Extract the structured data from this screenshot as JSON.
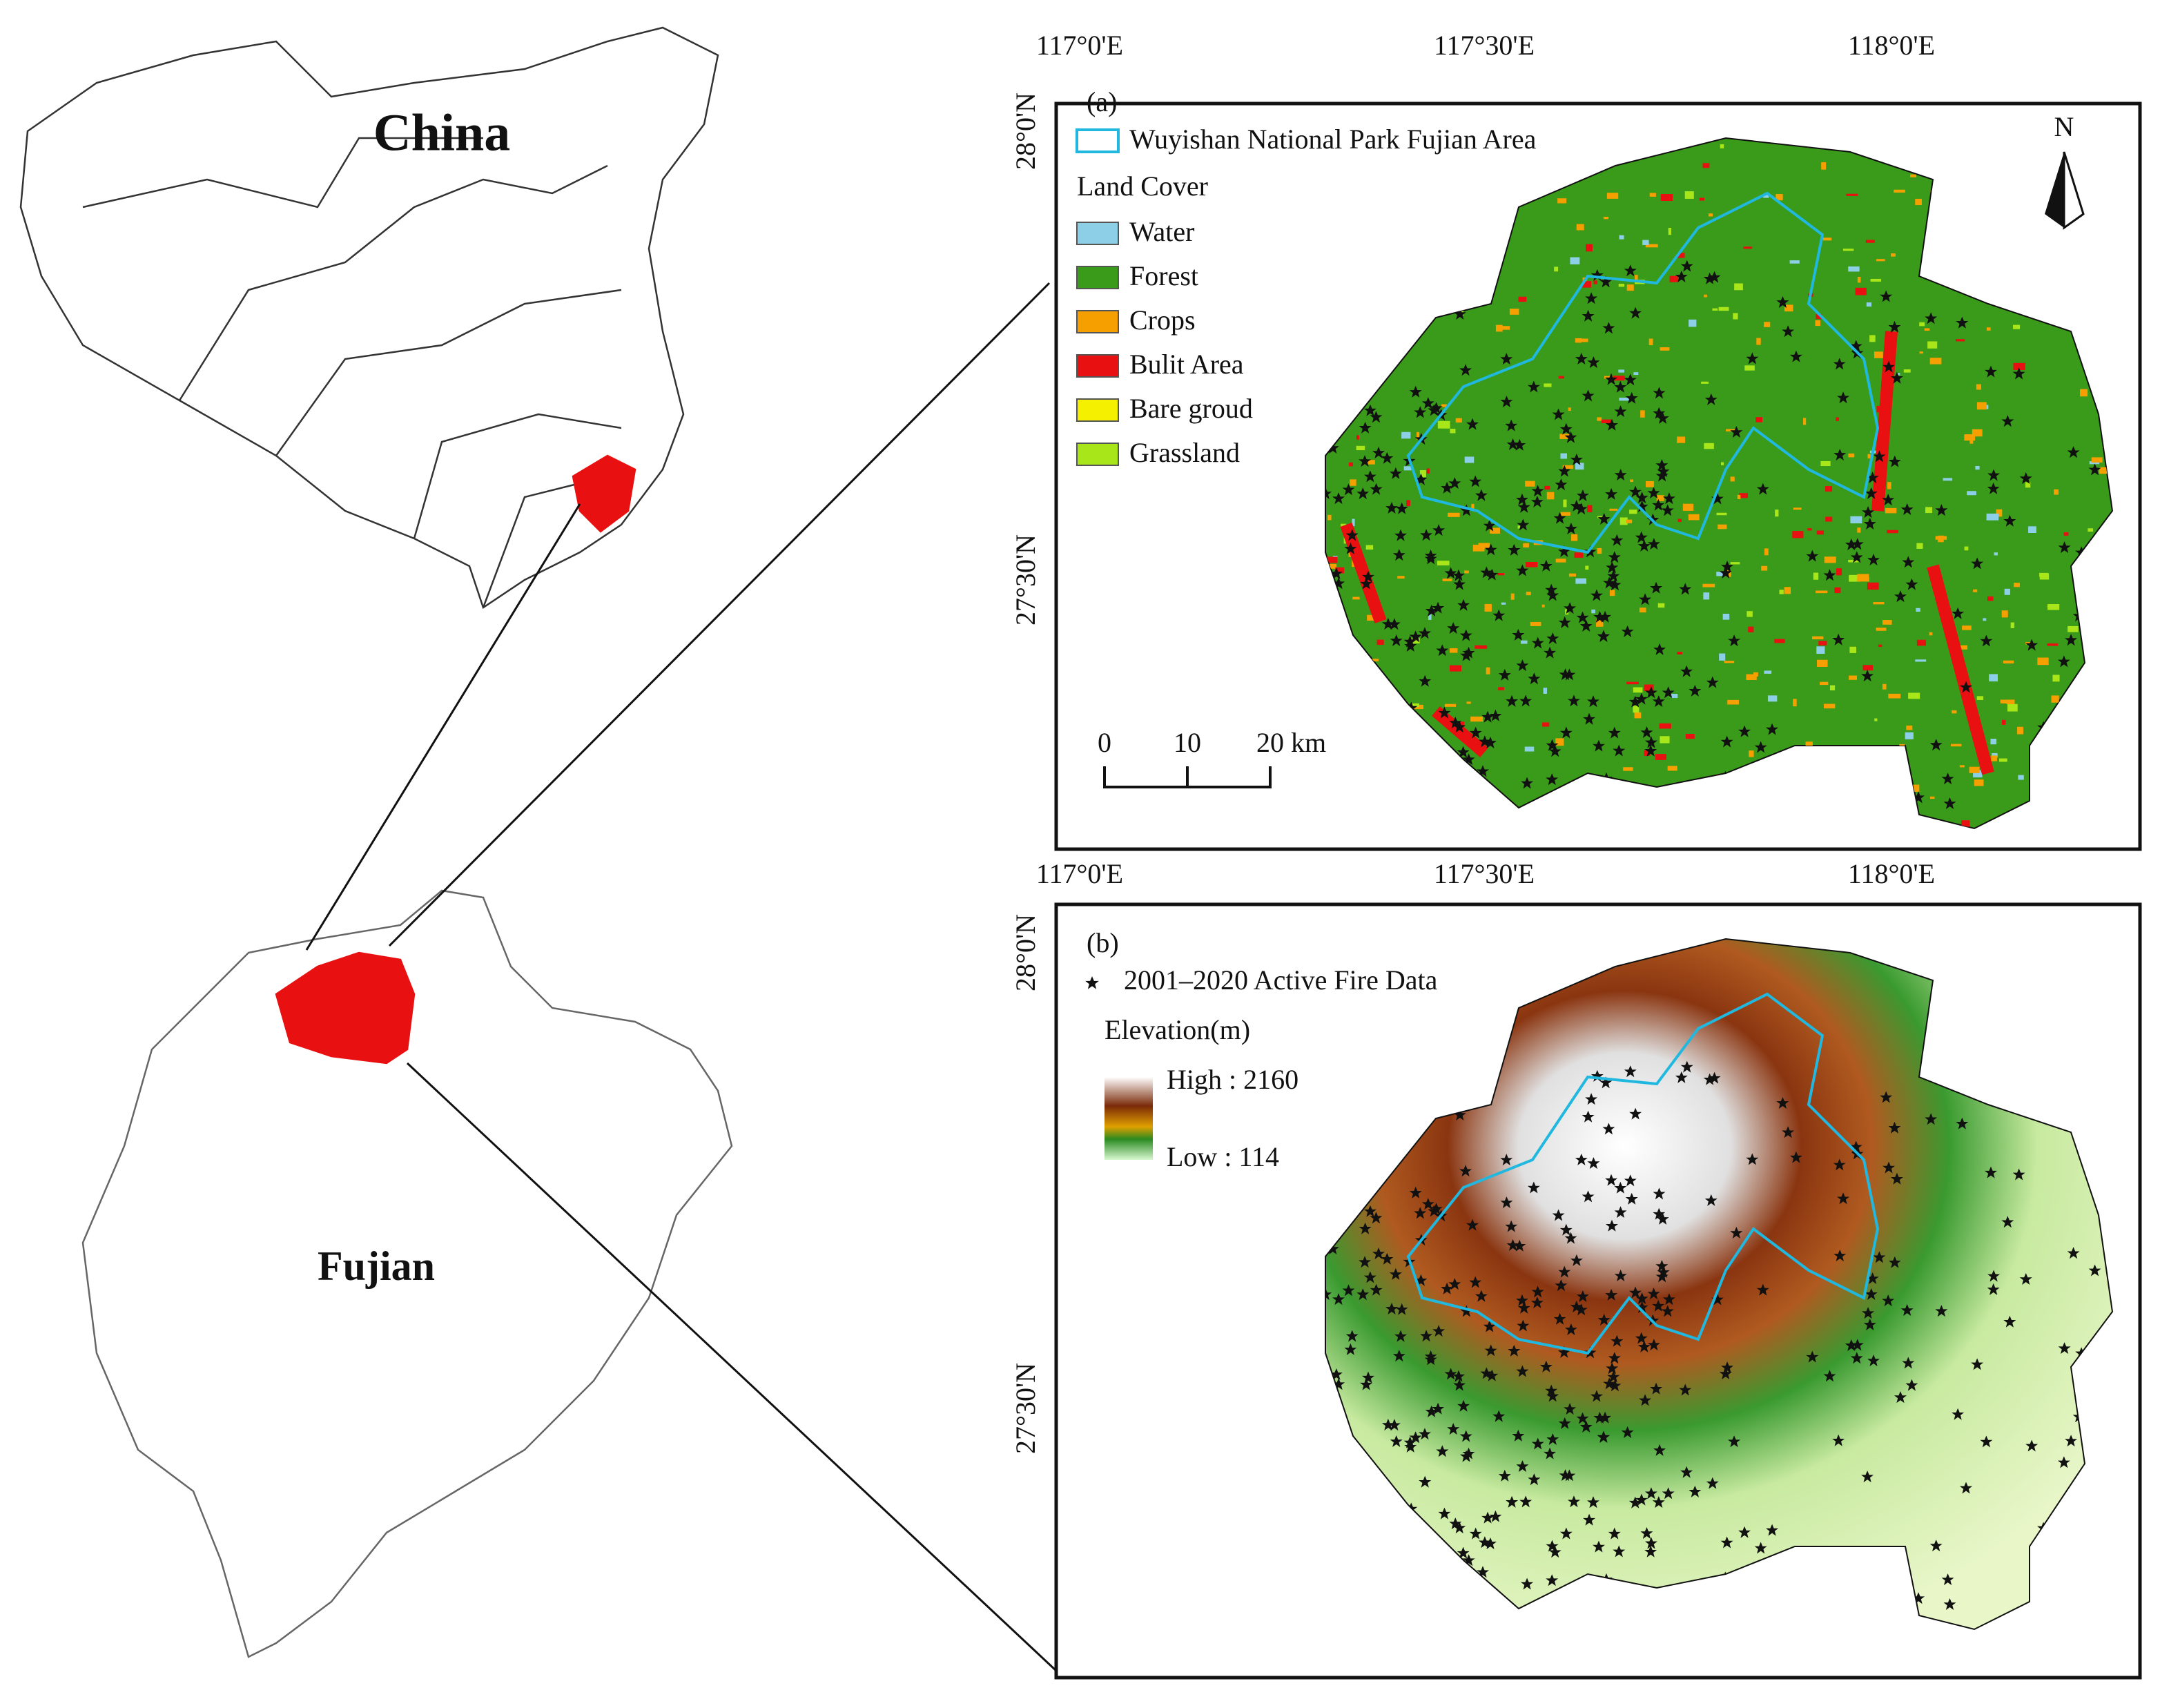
{
  "overview": {
    "china_label": "China",
    "fujian_label": "Fujian"
  },
  "panel_a": {
    "label": "(a)",
    "lon_ticks": [
      "117°0'E",
      "117°30'E",
      "118°0'E"
    ],
    "lat_ticks": [
      "28°0'N",
      "27°30'N"
    ],
    "north": "N",
    "boundary_legend": "Wuyishan National Park Fujian Area",
    "land_cover_title": "Land Cover",
    "classes": [
      {
        "name": "Water",
        "color": "#8ecfe8"
      },
      {
        "name": "Forest",
        "color": "#3a9a1a"
      },
      {
        "name": "Crops",
        "color": "#f5a000"
      },
      {
        "name": "Bulit Area",
        "color": "#e81010"
      },
      {
        "name": "Bare groud",
        "color": "#f5f000"
      },
      {
        "name": "Grassland",
        "color": "#a8e61a"
      }
    ],
    "scale_labels": [
      "0",
      "10",
      "20 km"
    ]
  },
  "panel_b": {
    "label": "(b)",
    "lon_ticks": [
      "117°0'E",
      "117°30'E",
      "118°0'E"
    ],
    "lat_ticks": [
      "28°0'N",
      "27°30'N"
    ],
    "fire_legend": "2001–2020 Active Fire Data",
    "elevation_title": "Elevation(m)",
    "high_label": "High : 2160",
    "low_label": "Low : 114"
  }
}
